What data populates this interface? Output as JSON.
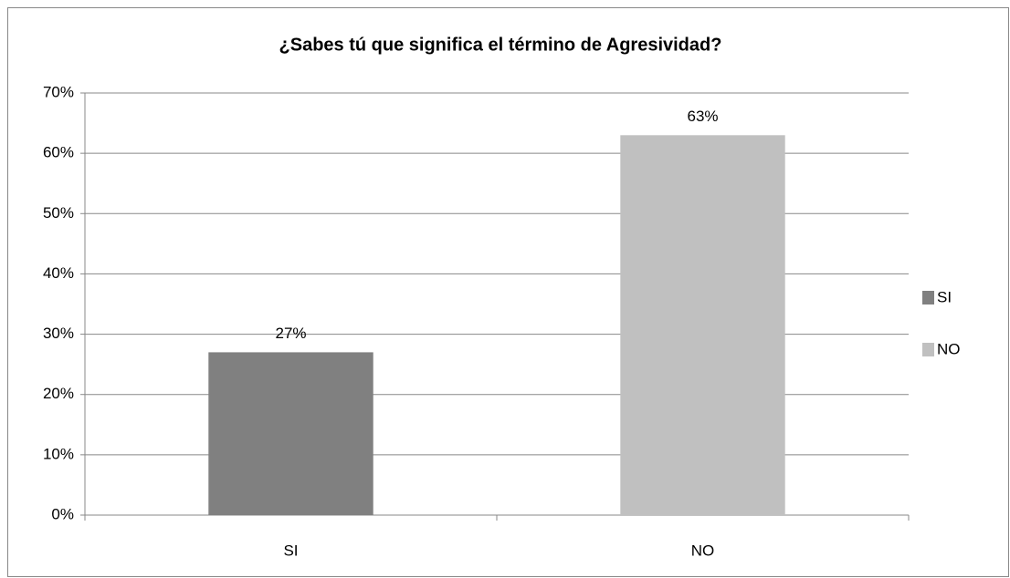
{
  "chart_data": {
    "type": "bar",
    "title": "¿Sabes tú que significa el término de Agresividad?",
    "categories": [
      "SI",
      "NO"
    ],
    "values": [
      27,
      63
    ],
    "value_labels": [
      "27%",
      "63%"
    ],
    "colors": [
      "#808080",
      "#c0c0c0"
    ],
    "ylim": [
      0,
      70
    ],
    "yticks": [
      {
        "value": 0,
        "label": "0%"
      },
      {
        "value": 10,
        "label": "10%"
      },
      {
        "value": 20,
        "label": "20%"
      },
      {
        "value": 30,
        "label": "30%"
      },
      {
        "value": 40,
        "label": "40%"
      },
      {
        "value": 50,
        "label": "50%"
      },
      {
        "value": 60,
        "label": "60%"
      },
      {
        "value": 70,
        "label": "70%"
      }
    ],
    "grid": true,
    "legend": "right"
  }
}
